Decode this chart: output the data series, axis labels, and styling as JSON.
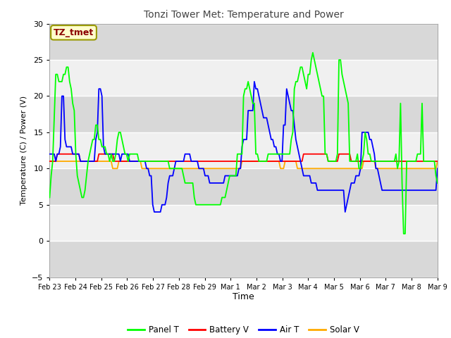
{
  "title": "Tonzi Tower Met: Temperature and Power",
  "xlabel": "Time",
  "ylabel": "Temperature (C) / Power (V)",
  "ylim": [
    -5,
    30
  ],
  "annotation": "TZ_tmet",
  "legend_labels": [
    "Panel T",
    "Battery V",
    "Air T",
    "Solar V"
  ],
  "legend_colors": [
    "#00ff00",
    "#ff0000",
    "#0000ff",
    "#ffaa00"
  ],
  "xtick_labels": [
    "Feb 23",
    "Feb 24",
    "Feb 25",
    "Feb 26",
    "Feb 27",
    "Feb 28",
    "Feb 29",
    "Mar 1",
    "Mar 2",
    "Mar 3",
    "Mar 4",
    "Mar 5",
    "Mar 6",
    "Mar 7",
    "Mar 8",
    "Mar 9"
  ],
  "bg_color": "#e8e8e8",
  "bg_light": "#f0f0f0",
  "bg_dark": "#d8d8d8",
  "grid_color": "#ffffff",
  "num_days": 15,
  "panel_t": [
    6,
    9,
    11,
    17,
    23,
    23,
    22,
    22,
    22,
    23,
    23,
    24,
    24,
    22,
    21,
    19,
    18,
    12,
    9,
    8,
    7,
    6,
    6,
    7,
    9,
    11,
    12,
    13,
    14,
    14,
    16,
    16,
    14,
    14,
    13,
    13,
    13,
    12,
    12,
    11,
    12,
    11,
    11,
    12,
    14,
    15,
    15,
    14,
    13,
    12,
    12,
    11,
    12,
    12,
    12,
    12,
    12,
    12,
    11,
    11,
    11,
    11,
    11,
    11,
    11,
    11,
    11,
    11,
    11,
    11,
    11,
    11,
    11,
    11,
    11,
    11,
    11,
    11,
    10,
    10,
    10,
    10,
    10,
    10,
    10,
    10,
    10,
    9,
    8,
    8,
    8,
    8,
    8,
    8,
    6,
    5,
    5,
    5,
    5,
    5,
    5,
    5,
    5,
    5,
    5,
    5,
    5,
    5,
    5,
    5,
    5,
    5,
    6,
    6,
    6,
    7,
    8,
    9,
    9,
    9,
    9,
    9,
    12,
    12,
    12,
    12,
    20,
    21,
    21,
    22,
    21,
    20,
    19,
    19,
    12,
    12,
    11,
    11,
    11,
    11,
    11,
    11,
    12,
    12,
    12,
    12,
    12,
    12,
    12,
    12,
    12,
    12,
    12,
    12,
    12,
    12,
    12,
    14,
    15,
    21,
    22,
    22,
    23,
    24,
    24,
    23,
    22,
    21,
    23,
    23,
    25,
    26,
    25,
    24,
    23,
    22,
    21,
    20,
    20,
    12,
    12,
    11,
    11,
    11,
    11,
    11,
    11,
    12,
    25,
    25,
    23,
    22,
    21,
    20,
    19,
    11,
    11,
    11,
    11,
    11,
    12,
    10,
    10,
    11,
    12,
    15,
    14,
    12,
    12,
    11,
    11,
    11,
    11,
    11,
    11,
    11,
    11,
    11,
    11,
    11,
    11,
    11,
    11,
    11,
    11,
    12,
    10,
    11,
    19,
    8,
    1,
    1,
    11,
    11,
    11,
    11,
    11,
    11,
    11,
    12,
    12,
    12,
    19,
    11,
    11,
    11,
    11,
    11,
    11,
    11,
    11,
    9,
    8
  ],
  "battery_v": [
    11,
    11,
    11,
    11,
    11,
    12,
    12,
    12,
    12,
    12,
    12,
    12,
    12,
    12,
    12,
    12,
    12,
    12,
    12,
    12,
    11,
    11,
    11,
    11,
    11,
    11,
    11,
    11,
    11,
    11,
    11,
    11,
    12,
    12,
    12,
    12,
    12,
    12,
    12,
    12,
    12,
    12,
    11,
    11,
    11,
    11,
    11,
    11,
    11,
    11,
    11,
    11,
    11,
    11,
    11,
    11,
    11,
    11,
    11,
    11,
    11,
    11,
    11,
    11,
    11,
    11,
    11,
    11,
    11,
    11,
    11,
    11,
    11,
    11,
    11,
    11,
    11,
    11,
    11,
    11,
    11,
    11,
    11,
    11,
    11,
    11,
    11,
    11,
    11,
    11,
    11,
    11,
    11,
    11,
    11,
    11,
    11,
    11,
    11,
    11,
    11,
    11,
    11,
    11,
    11,
    11,
    11,
    11,
    11,
    11,
    11,
    11,
    11,
    11,
    11,
    11,
    11,
    11,
    11,
    11,
    11,
    11,
    11,
    11,
    11,
    11,
    11,
    11,
    11,
    11,
    11,
    11,
    11,
    11,
    11,
    11,
    11,
    11,
    11,
    11,
    11,
    11,
    11,
    11,
    11,
    11,
    11,
    11,
    11,
    11,
    11,
    11,
    11,
    11,
    11,
    11,
    11,
    11,
    11,
    11,
    11,
    11,
    11,
    11,
    11,
    12,
    12,
    12,
    12,
    12,
    12,
    12,
    12,
    12,
    12,
    12,
    12,
    12,
    12,
    12,
    12,
    11,
    11,
    11,
    11,
    11,
    11,
    11,
    12,
    12,
    12,
    12,
    12,
    12,
    12,
    12,
    11,
    11,
    11,
    11,
    11,
    11,
    11,
    11,
    11,
    11,
    11,
    11,
    11,
    11,
    11,
    11,
    11,
    11,
    11,
    11,
    11,
    11,
    11,
    11,
    11,
    11,
    11,
    11,
    11,
    11,
    11,
    11,
    11,
    11,
    11,
    11,
    11,
    11,
    11,
    11,
    11,
    11,
    11,
    11,
    11,
    11,
    11,
    11,
    11,
    11,
    11,
    11,
    11,
    11,
    11,
    11,
    11
  ],
  "air_t": [
    12,
    12,
    12,
    12,
    11,
    12,
    12,
    13,
    20,
    20,
    14,
    13,
    13,
    13,
    13,
    12,
    12,
    12,
    12,
    12,
    11,
    11,
    11,
    11,
    11,
    11,
    11,
    11,
    11,
    11,
    14,
    15,
    21,
    21,
    20,
    13,
    12,
    12,
    12,
    12,
    12,
    12,
    12,
    12,
    12,
    12,
    11,
    12,
    12,
    12,
    12,
    12,
    11,
    11,
    11,
    11,
    11,
    11,
    11,
    11,
    11,
    11,
    11,
    10,
    10,
    9,
    9,
    5,
    4,
    4,
    4,
    4,
    4,
    5,
    5,
    5,
    6,
    8,
    9,
    9,
    9,
    10,
    11,
    11,
    11,
    11,
    11,
    11,
    12,
    12,
    12,
    12,
    11,
    11,
    11,
    11,
    11,
    10,
    10,
    10,
    10,
    9,
    9,
    9,
    8,
    8,
    8,
    8,
    8,
    8,
    8,
    8,
    8,
    8,
    9,
    9,
    9,
    9,
    9,
    9,
    9,
    9,
    9,
    10,
    10,
    13,
    14,
    14,
    14,
    18,
    18,
    18,
    18,
    22,
    21,
    21,
    20,
    19,
    18,
    17,
    17,
    17,
    16,
    15,
    14,
    14,
    13,
    13,
    12,
    12,
    11,
    11,
    16,
    16,
    21,
    20,
    19,
    18,
    18,
    16,
    14,
    13,
    12,
    11,
    10,
    9,
    9,
    9,
    9,
    9,
    8,
    8,
    8,
    8,
    7,
    7,
    7,
    7,
    7,
    7,
    7,
    7,
    7,
    7,
    7,
    7,
    7,
    7,
    7,
    7,
    7,
    7,
    4,
    5,
    6,
    7,
    8,
    8,
    8,
    9,
    9,
    9,
    10,
    15,
    15,
    15,
    15,
    15,
    14,
    14,
    13,
    12,
    10,
    10,
    9,
    8,
    7,
    7,
    7,
    7,
    7,
    7,
    7,
    7,
    7,
    7,
    7,
    7,
    7,
    7,
    7,
    7,
    7,
    7,
    7,
    7,
    7,
    7,
    7,
    7,
    7,
    7,
    7,
    7,
    7,
    7,
    7,
    7,
    7,
    7,
    7,
    7,
    10
  ],
  "solar_v": [
    11,
    11,
    11,
    11,
    11,
    11,
    11,
    11,
    11,
    11,
    11,
    11,
    11,
    11,
    11,
    11,
    11,
    11,
    11,
    11,
    11,
    11,
    11,
    11,
    11,
    11,
    11,
    11,
    11,
    11,
    11,
    11,
    11,
    11,
    11,
    11,
    11,
    11,
    11,
    11,
    11,
    10,
    10,
    10,
    10,
    11,
    11,
    11,
    11,
    11,
    11,
    11,
    11,
    11,
    11,
    11,
    11,
    11,
    11,
    11,
    10,
    10,
    10,
    10,
    10,
    10,
    10,
    10,
    10,
    10,
    10,
    10,
    10,
    10,
    10,
    10,
    10,
    10,
    10,
    10,
    10,
    10,
    10,
    10,
    10,
    10,
    10,
    10,
    10,
    10,
    10,
    10,
    10,
    10,
    10,
    10,
    10,
    10,
    10,
    10,
    10,
    10,
    10,
    10,
    10,
    10,
    10,
    10,
    10,
    10,
    10,
    10,
    10,
    10,
    10,
    10,
    10,
    10,
    10,
    10,
    10,
    10,
    10,
    10,
    10,
    11,
    11,
    11,
    11,
    11,
    11,
    11,
    11,
    11,
    11,
    11,
    11,
    11,
    11,
    11,
    11,
    11,
    11,
    11,
    11,
    11,
    11,
    11,
    11,
    11,
    10,
    10,
    10,
    11,
    11,
    11,
    11,
    11,
    11,
    11,
    11,
    10,
    10,
    10,
    10,
    10,
    10,
    10,
    10,
    10,
    10,
    10,
    10,
    10,
    10,
    10,
    10,
    10,
    10,
    10,
    10,
    10,
    10,
    10,
    10,
    10,
    10,
    10,
    10,
    10,
    10,
    10,
    10,
    10,
    10,
    10,
    10,
    10,
    10,
    10,
    10,
    10,
    10,
    10,
    11,
    11,
    11,
    11,
    11,
    11,
    11,
    11,
    10,
    10,
    10,
    10,
    10,
    10,
    10,
    10,
    10,
    10,
    10,
    10,
    10,
    10,
    10,
    10,
    10,
    10,
    10,
    10,
    10,
    10,
    10,
    10,
    10,
    10,
    10,
    10,
    10,
    10,
    10,
    10,
    10,
    10,
    10,
    10,
    10,
    10,
    10,
    10,
    11
  ]
}
